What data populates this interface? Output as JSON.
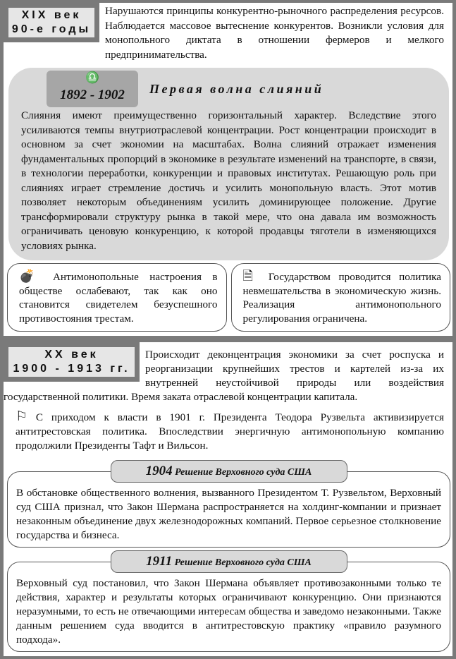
{
  "section1": {
    "label_line1": "XIX век",
    "label_line2": "90-е годы",
    "intro": "Нарушаются принципы конкурентно-рыночного распределения ресурсов. Наблюдается массовое вытеснение конкурентов. Возникли условия для монопольного диктата в отношении фермеров и мелкого предпринимательства.",
    "wave": {
      "icon": "libra-icon",
      "years": "1892 - 1902",
      "title": "Первая волна слияний",
      "body": "Слияния имеют преимущественно горизонтальный характер. Вследствие этого усиливаются темпы внутриотраслевой концентрации. Рост концентрации происходит в основном за счет экономии на масштабах. Волна слияний отражает изменения фундаментальных пропорций в экономике в результате изменений на транспорте, в связи, в технологии переработки, конкуренции и правовых институтах. Решающую роль при слияниях играет стремление достичь и усилить монопольную власть. Этот мотив позволяет некоторым объединениям усилить доминирующее положение. Другие трансформировали структуру рынка в такой мере, что она давала им возможность ограничивать ценовую конкуренцию, к которой продавцы тяготели в изменяющихся условиях рынка."
    },
    "left_box": {
      "icon": "bomb-icon",
      "text": "Антимонопольные настроения в обществе ослабевают, так как оно становится свидетелем безуспешного противостояния трестам."
    },
    "right_box": {
      "icon": "document-icon",
      "text": "Государством проводится политика невмешательства в экономическую жизнь. Реализация антимонопольного регулирования ограничена."
    }
  },
  "section2": {
    "label_line1": "XX век",
    "label_line2": "1900 - 1913 гг.",
    "intro": "Происходит деконцентрация экономики за счет роспуска и реорганизации крупнейших трестов и картелей из-за их внутренней неустойчивой природы или воздействия государственной политики. Время заката отраслевой концентрации капитала.",
    "flag_icon": "flag-icon",
    "roosevelt": "С приходом к власти в 1901 г. Президента Теодора Рузвельта активизируется антитрестовская политика. Впоследствии энергичную антимонопольную компанию продолжили Президенты Тафт и Вильсон.",
    "rulings": [
      {
        "year": "1904",
        "title": "Решение Верховного суда США",
        "text": "В обстановке общественного волнения, вызванного Президентом Т. Рузвельтом, Верховный суд США признал, что Закон Шермана распространяется на холдинг-компании и признает незаконным объединение двух железнодорожных компаний. Первое серьезное столкновение государства и бизнеса."
      },
      {
        "year": "1911",
        "title": "Решение Верховного суда США",
        "text": "Верховный суд постановил, что Закон Шермана объявляет противозаконными только те действия, характер и результаты которых ограничивают конкуренцию. Они признаются неразумными, то есть не отвечающими интересам общества и заведомо незаконными. Также данным решением суда вводится в антитрестовскую практику «правило разумного подхода»."
      }
    ]
  }
}
